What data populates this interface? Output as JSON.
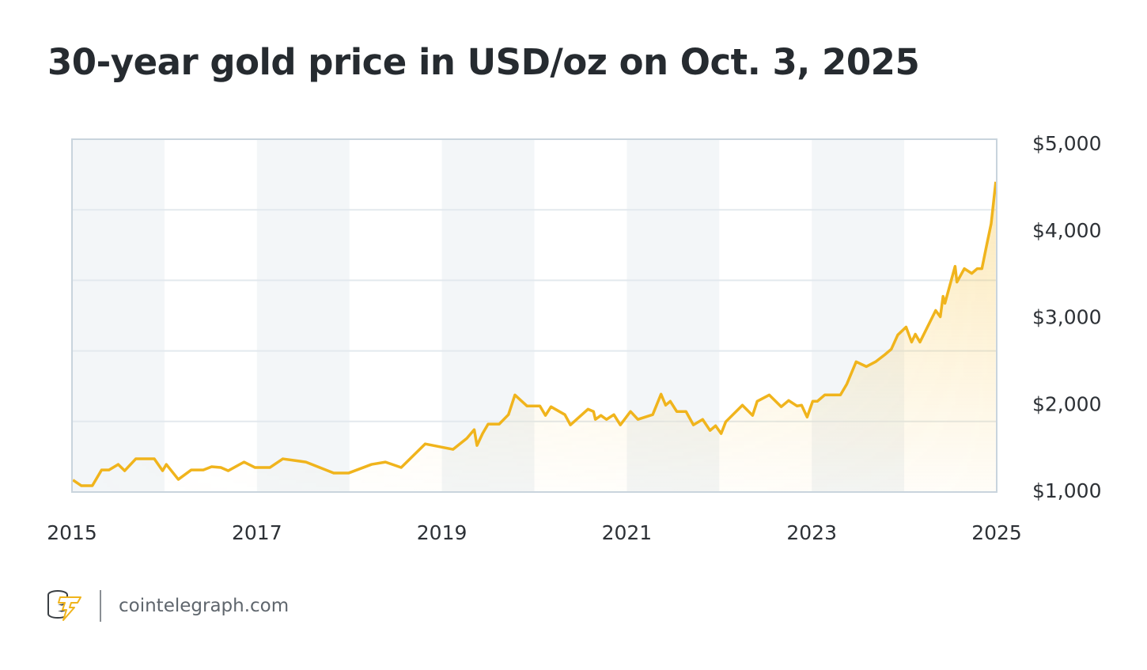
{
  "chart_data": {
    "type": "area",
    "title": "30-year gold price in USD/oz on Oct. 3, 2025",
    "xlabel": "",
    "ylabel": "",
    "xlim": [
      2015,
      2025
    ],
    "ylim": [
      1000,
      5000
    ],
    "x_ticks": [
      "2015",
      "2017",
      "2019",
      "2021",
      "2023",
      "2025"
    ],
    "y_ticks": [
      "$5,000",
      "$4,000",
      "$3,000",
      "$2,000",
      "$1,000"
    ],
    "grid": true,
    "shaded_year_bands": [
      2015,
      2017,
      2019,
      2021,
      2023
    ],
    "colors": {
      "line": "#f0b41c",
      "fill": "#f7c445",
      "band": "#f3f6f8",
      "grid": "#e3e9ee",
      "border": "#c9d4dd"
    },
    "series": [
      {
        "x": [
          2015.01,
          2015.1,
          2015.22,
          2015.32,
          2015.4,
          2015.5,
          2015.57,
          2015.69,
          2015.89,
          2015.98,
          2016.02,
          2016.15,
          2016.29,
          2016.42,
          2016.51,
          2016.61,
          2016.69,
          2016.86,
          2016.98,
          2017.14,
          2017.28,
          2017.53,
          2017.83,
          2017.99,
          2018.24,
          2018.39,
          2018.56,
          2018.82,
          2019.12,
          2019.27,
          2019.35,
          2019.38,
          2019.44,
          2019.5,
          2019.62,
          2019.72,
          2019.79,
          2019.92,
          2020.06,
          2020.12,
          2020.18,
          2020.33,
          2020.39,
          2020.58,
          2020.64,
          2020.66,
          2020.72,
          2020.78,
          2020.86,
          2020.93,
          2021.04,
          2021.12,
          2021.28,
          2021.37,
          2021.42,
          2021.47,
          2021.54,
          2021.64,
          2021.72,
          2021.82,
          2021.9,
          2021.96,
          2022.02,
          2022.07,
          2022.25,
          2022.36,
          2022.41,
          2022.54,
          2022.67,
          2022.75,
          2022.84,
          2022.89,
          2022.95,
          2023.01,
          2023.06,
          2023.14,
          2023.31,
          2023.38,
          2023.48,
          2023.59,
          2023.69,
          2023.79,
          2023.86,
          2023.93,
          2024.02,
          2024.08,
          2024.12,
          2024.17,
          2024.34,
          2024.39,
          2024.42,
          2024.44,
          2024.55,
          2024.57,
          2024.65,
          2024.73,
          2024.79,
          2024.84,
          2024.89,
          2024.94,
          2024.99
        ],
        "y": [
          1120,
          1055,
          1055,
          1236,
          1236,
          1300,
          1227,
          1364,
          1364,
          1227,
          1300,
          1127,
          1236,
          1236,
          1273,
          1264,
          1227,
          1327,
          1264,
          1264,
          1364,
          1327,
          1200,
          1200,
          1300,
          1327,
          1264,
          1536,
          1473,
          1600,
          1700,
          1518,
          1655,
          1764,
          1764,
          1873,
          2100,
          1973,
          1973,
          1864,
          1964,
          1873,
          1755,
          1936,
          1909,
          1818,
          1864,
          1818,
          1873,
          1755,
          1909,
          1818,
          1873,
          2109,
          1982,
          2027,
          1909,
          1909,
          1755,
          1818,
          1691,
          1745,
          1655,
          1791,
          1982,
          1864,
          2027,
          2100,
          1964,
          2036,
          1973,
          1982,
          1845,
          2027,
          2027,
          2100,
          2100,
          2227,
          2482,
          2427,
          2482,
          2564,
          2627,
          2791,
          2882,
          2709,
          2800,
          2709,
          3073,
          3000,
          3236,
          3155,
          3582,
          3400,
          3555,
          3500,
          3555,
          3555,
          3818,
          4073,
          4555
        ]
      }
    ]
  },
  "footer": {
    "brand": "cointelegraph.com",
    "logo_icon": "coin-stack-lightning-icon"
  }
}
